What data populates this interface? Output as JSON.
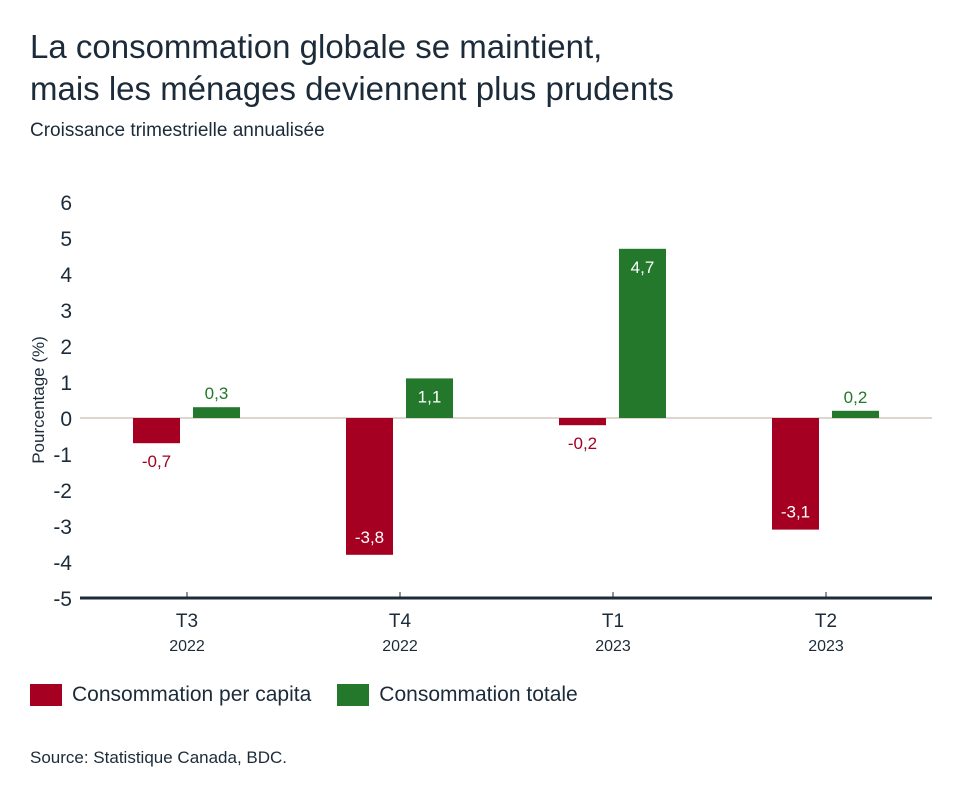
{
  "header": {
    "title_lines": [
      "La consommation globale se maintient,",
      "mais les ménages deviennent plus prudents"
    ],
    "subtitle": "Croissance trimestrielle annualisée"
  },
  "source": "Source: Statistique Canada, BDC.",
  "colors": {
    "per_capita": "#a50021",
    "totale": "#23782b",
    "axis": "#1c2b3a",
    "zero_line": "#ddd6cf",
    "label_on_bar": "#ffffff"
  },
  "chart_data": {
    "type": "bar",
    "title": "La consommation globale se maintient, mais les ménages deviennent plus prudents",
    "subtitle": "Croissance trimestrielle annualisée",
    "xlabel": "",
    "ylabel": "Pourcentage (%)",
    "ylim": [
      -5,
      6
    ],
    "yticks": [
      6,
      5,
      4,
      3,
      2,
      1,
      0,
      -1,
      -2,
      -3,
      -4,
      -5
    ],
    "grid": false,
    "legend_position": "bottom-left",
    "categories": [
      {
        "quarter": "T3",
        "year": "2022"
      },
      {
        "quarter": "T4",
        "year": "2022"
      },
      {
        "quarter": "T1",
        "year": "2023"
      },
      {
        "quarter": "T2",
        "year": "2023"
      }
    ],
    "series": [
      {
        "name": "Consommation per capita",
        "color_key": "per_capita",
        "values": [
          -0.7,
          -3.8,
          -0.2,
          -3.1
        ],
        "labels": [
          "-0,7",
          "-3,8",
          "-0,2",
          "-3,1"
        ]
      },
      {
        "name": "Consommation totale",
        "color_key": "totale",
        "values": [
          0.3,
          1.1,
          4.7,
          0.2
        ],
        "labels": [
          "0,3",
          "1,1",
          "4,7",
          "0,2"
        ]
      }
    ]
  }
}
